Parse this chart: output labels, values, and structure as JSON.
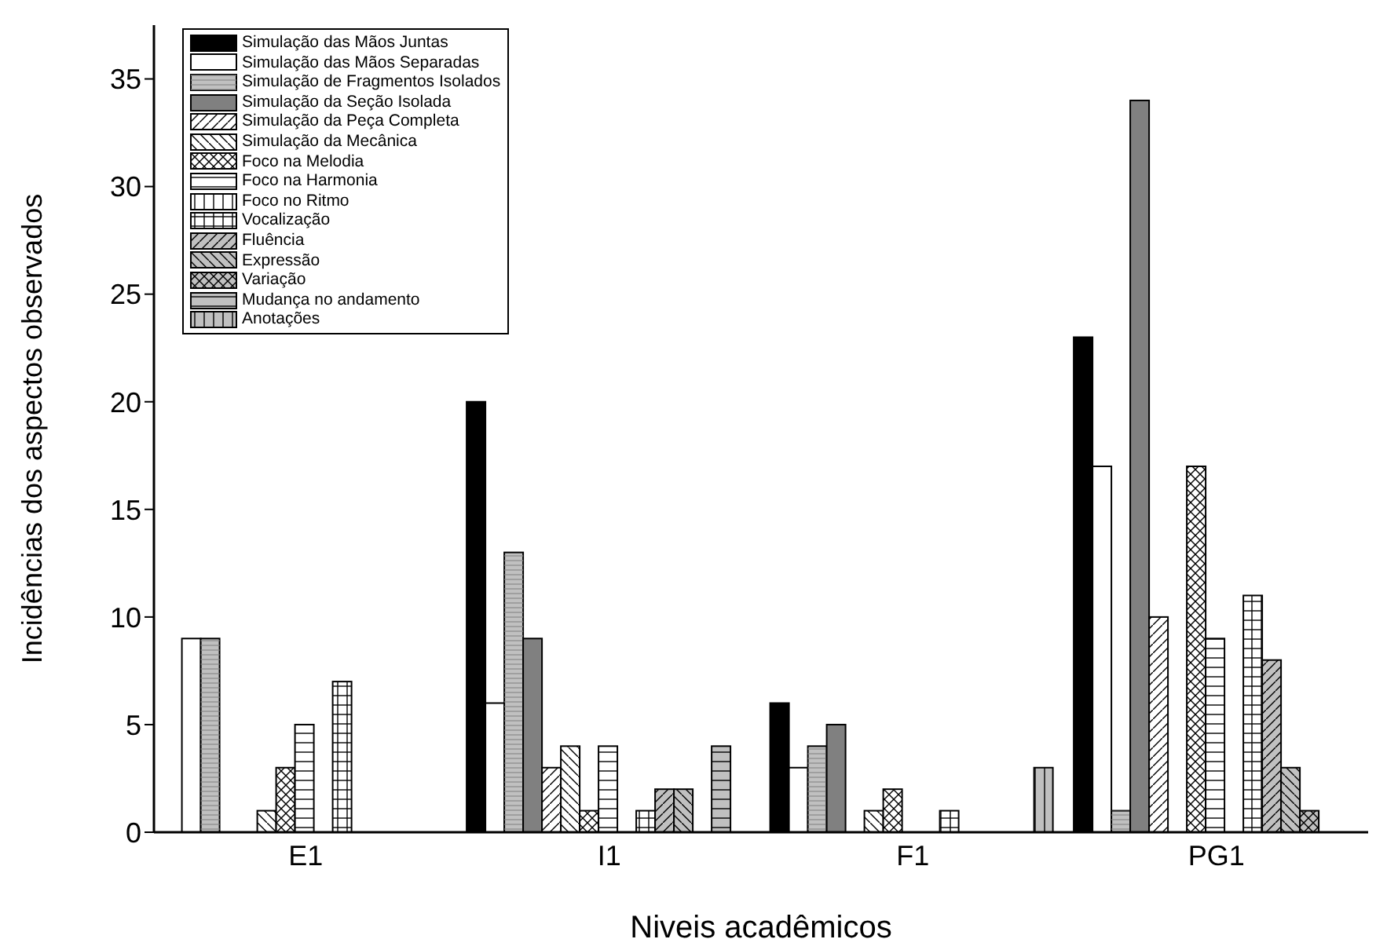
{
  "chart_data": {
    "type": "bar",
    "xlabel": "Niveis acadêmicos",
    "ylabel": "Incidências dos aspectos observados",
    "categories": [
      "E1",
      "I1",
      "F1",
      "PG1"
    ],
    "series": [
      {
        "name": "Simulação das Mãos Juntas",
        "color": "#000000",
        "values": [
          0,
          20,
          6,
          23
        ]
      },
      {
        "name": "Simulação das Mãos Separadas",
        "color": "#ffffff",
        "values": [
          9,
          6,
          3,
          17
        ]
      },
      {
        "name": "Simulação de Fragmentos Isolados",
        "color": "#c0c0c0",
        "values": [
          9,
          13,
          4,
          1
        ]
      },
      {
        "name": "Simulação da Seção Isolada",
        "color": "#808080",
        "values": [
          0,
          9,
          5,
          34
        ]
      },
      {
        "name": "Simulação da Peça Completa",
        "color": "#ffffff",
        "values": [
          0,
          3,
          0,
          10
        ]
      },
      {
        "name": "Simulação da Mecânica",
        "color": "#ffffff",
        "values": [
          1,
          4,
          1,
          0
        ]
      },
      {
        "name": "Foco na Melodia",
        "color": "#ffffff",
        "values": [
          3,
          1,
          2,
          17
        ]
      },
      {
        "name": "Foco na Harmonia",
        "color": "#ffffff",
        "values": [
          5,
          4,
          0,
          9
        ]
      },
      {
        "name": "Foco no Ritmo",
        "color": "#ffffff",
        "values": [
          0,
          0,
          0,
          0
        ]
      },
      {
        "name": "Vocalização",
        "color": "#ffffff",
        "values": [
          7,
          1,
          1,
          11
        ]
      },
      {
        "name": "Fluência",
        "color": "#c0c0c0",
        "values": [
          0,
          2,
          0,
          8
        ]
      },
      {
        "name": "Expressão",
        "color": "#c0c0c0",
        "values": [
          0,
          2,
          0,
          3
        ]
      },
      {
        "name": "Variação",
        "color": "#c0c0c0",
        "values": [
          0,
          0,
          0,
          1
        ]
      },
      {
        "name": "Mudança no andamento",
        "color": "#c0c0c0",
        "values": [
          0,
          4,
          0,
          0
        ]
      },
      {
        "name": "Anotações",
        "color": "#c0c0c0",
        "values": [
          0,
          0,
          3,
          0
        ]
      }
    ],
    "ylim": [
      0,
      37.5
    ],
    "yticks": [
      0,
      5,
      10,
      15,
      20,
      25,
      30,
      35
    ],
    "grid": false,
    "legend": "top left"
  }
}
